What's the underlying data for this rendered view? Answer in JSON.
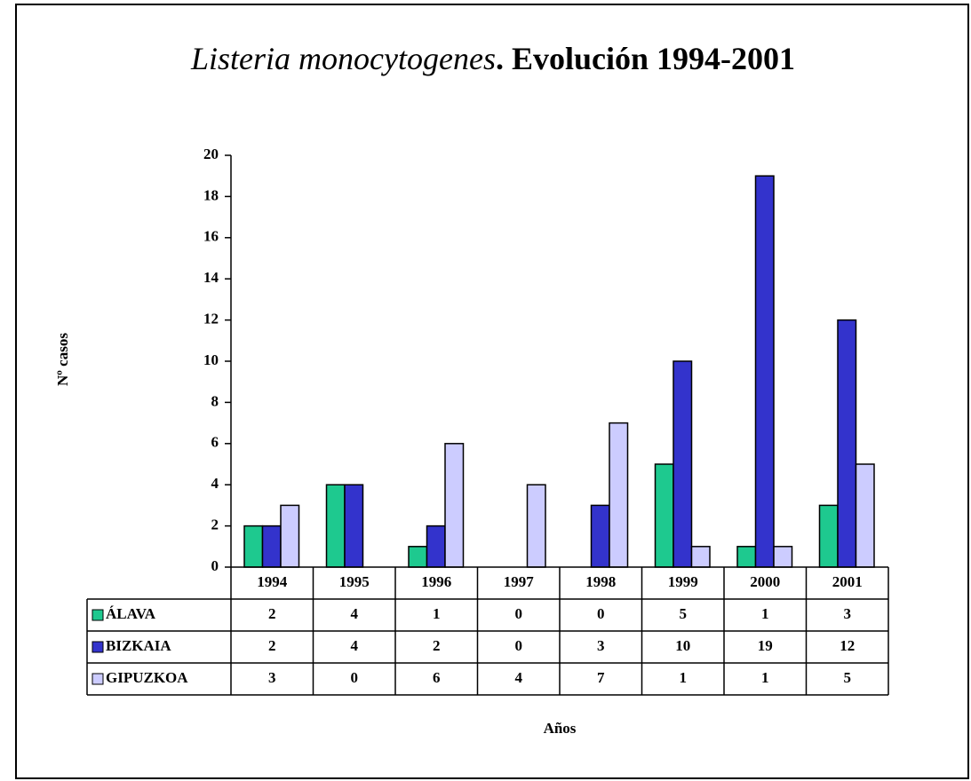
{
  "chart_data": {
    "type": "bar",
    "title_italic": "Listeria monocytogenes",
    "title": ". Evolución 1994-2001",
    "y_label": "Nº casos",
    "x_label": "Años",
    "categories": [
      "1994",
      "1995",
      "1996",
      "1997",
      "1998",
      "1999",
      "2000",
      "2001"
    ],
    "series": [
      {
        "name": "ÁLAVA",
        "color": "#1ec98f",
        "values": [
          2,
          4,
          1,
          0,
          0,
          5,
          1,
          3
        ]
      },
      {
        "name": "BIZKAIA",
        "color": "#3333cc",
        "values": [
          2,
          4,
          2,
          0,
          3,
          10,
          19,
          12
        ]
      },
      {
        "name": "GIPUZKOA",
        "color": "#ccccff",
        "values": [
          3,
          0,
          6,
          4,
          7,
          1,
          1,
          5
        ]
      }
    ],
    "ylim": [
      0,
      20
    ],
    "yticks": [
      0,
      2,
      4,
      6,
      8,
      10,
      12,
      14,
      16,
      18,
      20
    ],
    "grid": false
  }
}
